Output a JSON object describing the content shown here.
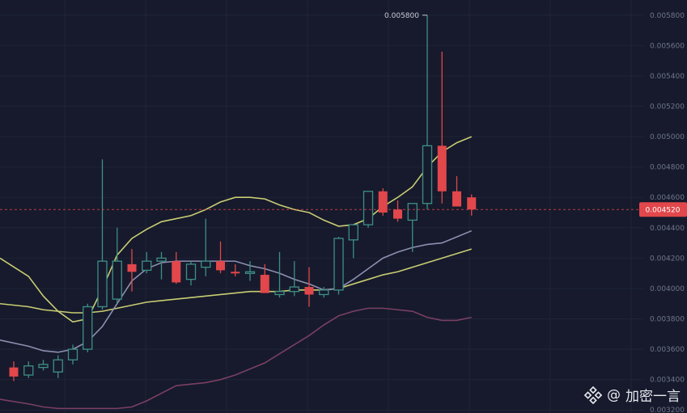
{
  "chart_data": {
    "type": "candlestick",
    "ylim": [
      0.00318,
      0.0059
    ],
    "y_ticks": [
      "0.005800",
      "0.005600",
      "0.005400",
      "0.005200",
      "0.005000",
      "0.004800",
      "0.004600",
      "0.004400",
      "0.004200",
      "0.004000",
      "0.003800",
      "0.003600",
      "0.003400",
      "0.003200"
    ],
    "high_label": "0.005800",
    "current_price_label": "0.004520",
    "current_price": 0.00452,
    "colors": {
      "up": "#3e8f86",
      "down": "#e2474b",
      "band_upper": "#c9cc72",
      "band_mid": "#8d8fb0",
      "band_lower": "#7a3f64",
      "grid": "#1f2436",
      "price_line": "#e2474b"
    },
    "candles": [
      {
        "o": 0.00348,
        "h": 0.00352,
        "l": 0.00339,
        "c": 0.00342
      },
      {
        "o": 0.00343,
        "h": 0.00352,
        "l": 0.00341,
        "c": 0.00349
      },
      {
        "o": 0.00348,
        "h": 0.00353,
        "l": 0.00346,
        "c": 0.0035
      },
      {
        "o": 0.00345,
        "h": 0.00356,
        "l": 0.00341,
        "c": 0.00353
      },
      {
        "o": 0.00353,
        "h": 0.00363,
        "l": 0.0035,
        "c": 0.0036
      },
      {
        "o": 0.0036,
        "h": 0.0039,
        "l": 0.00358,
        "c": 0.00388
      },
      {
        "o": 0.00388,
        "h": 0.00485,
        "l": 0.00386,
        "c": 0.00418
      },
      {
        "o": 0.00393,
        "h": 0.0044,
        "l": 0.0039,
        "c": 0.00418
      },
      {
        "o": 0.00416,
        "h": 0.00426,
        "l": 0.00398,
        "c": 0.00411
      },
      {
        "o": 0.00412,
        "h": 0.00424,
        "l": 0.0041,
        "c": 0.00418
      },
      {
        "o": 0.00418,
        "h": 0.00424,
        "l": 0.00406,
        "c": 0.0042
      },
      {
        "o": 0.00418,
        "h": 0.00424,
        "l": 0.00403,
        "c": 0.00404
      },
      {
        "o": 0.00406,
        "h": 0.00418,
        "l": 0.00402,
        "c": 0.00416
      },
      {
        "o": 0.00414,
        "h": 0.00446,
        "l": 0.00408,
        "c": 0.00418
      },
      {
        "o": 0.00418,
        "h": 0.00431,
        "l": 0.0041,
        "c": 0.00412
      },
      {
        "o": 0.00411,
        "h": 0.00416,
        "l": 0.00408,
        "c": 0.0041
      },
      {
        "o": 0.0041,
        "h": 0.00418,
        "l": 0.00405,
        "c": 0.00411
      },
      {
        "o": 0.00409,
        "h": 0.00416,
        "l": 0.00398,
        "c": 0.00397
      },
      {
        "o": 0.00396,
        "h": 0.00424,
        "l": 0.00394,
        "c": 0.00398
      },
      {
        "o": 0.00398,
        "h": 0.00418,
        "l": 0.00395,
        "c": 0.00401
      },
      {
        "o": 0.00401,
        "h": 0.00414,
        "l": 0.00388,
        "c": 0.00396
      },
      {
        "o": 0.00396,
        "h": 0.00401,
        "l": 0.00394,
        "c": 0.00399
      },
      {
        "o": 0.00399,
        "h": 0.00434,
        "l": 0.00396,
        "c": 0.00433
      },
      {
        "o": 0.00432,
        "h": 0.00442,
        "l": 0.0042,
        "c": 0.00442
      },
      {
        "o": 0.00442,
        "h": 0.00464,
        "l": 0.0044,
        "c": 0.00464
      },
      {
        "o": 0.00464,
        "h": 0.00466,
        "l": 0.00448,
        "c": 0.0045
      },
      {
        "o": 0.00452,
        "h": 0.00458,
        "l": 0.00444,
        "c": 0.00446
      },
      {
        "o": 0.00445,
        "h": 0.00456,
        "l": 0.00424,
        "c": 0.00456
      },
      {
        "o": 0.00456,
        "h": 0.0058,
        "l": 0.00452,
        "c": 0.00494
      },
      {
        "o": 0.00494,
        "h": 0.00556,
        "l": 0.00456,
        "c": 0.00464
      },
      {
        "o": 0.00464,
        "h": 0.00474,
        "l": 0.00454,
        "c": 0.00454
      },
      {
        "o": 0.0046,
        "h": 0.00462,
        "l": 0.00448,
        "c": 0.00452
      }
    ],
    "bands": {
      "upper": [
        0.0042,
        0.00408,
        0.00395,
        0.00385,
        0.00378,
        0.0038,
        0.004,
        0.00422,
        0.00433,
        0.00439,
        0.00444,
        0.00446,
        0.00448,
        0.00452,
        0.00457,
        0.0046,
        0.0046,
        0.00459,
        0.00455,
        0.00452,
        0.0045,
        0.00445,
        0.00441,
        0.00442,
        0.00446,
        0.00454,
        0.0046,
        0.00467,
        0.0048,
        0.0049,
        0.00496,
        0.005
      ],
      "mid": [
        0.00366,
        0.00362,
        0.00359,
        0.00358,
        0.0036,
        0.00365,
        0.00375,
        0.0039,
        0.00405,
        0.00413,
        0.00417,
        0.00418,
        0.00418,
        0.00418,
        0.00418,
        0.00418,
        0.00415,
        0.00413,
        0.0041,
        0.00406,
        0.00403,
        0.00399,
        0.004,
        0.00406,
        0.00413,
        0.0042,
        0.00424,
        0.00427,
        0.00429,
        0.0043,
        0.00434,
        0.00438
      ],
      "lower": [
        0.00327,
        0.00324,
        0.00322,
        0.00321,
        0.00321,
        0.00321,
        0.00321,
        0.00321,
        0.00322,
        0.00326,
        0.00331,
        0.00336,
        0.00337,
        0.00338,
        0.0034,
        0.00343,
        0.00347,
        0.00351,
        0.00357,
        0.00363,
        0.00369,
        0.00376,
        0.00382,
        0.00385,
        0.00387,
        0.00387,
        0.00386,
        0.00385,
        0.00381,
        0.00379,
        0.00379,
        0.00381
      ]
    },
    "baseline": [
      0.0039,
      0.00388,
      0.00386,
      0.00385,
      0.00384,
      0.00384,
      0.00385,
      0.00387,
      0.00389,
      0.00391,
      0.00392,
      0.00393,
      0.00394,
      0.00395,
      0.00396,
      0.00397,
      0.00398,
      0.00398,
      0.00398,
      0.00399,
      0.00399,
      0.00399,
      0.004,
      0.00403,
      0.00406,
      0.00409,
      0.00411,
      0.00414,
      0.00417,
      0.0042,
      0.00423,
      0.00426
    ]
  },
  "watermark": {
    "at": "@",
    "text": "加密一言"
  }
}
